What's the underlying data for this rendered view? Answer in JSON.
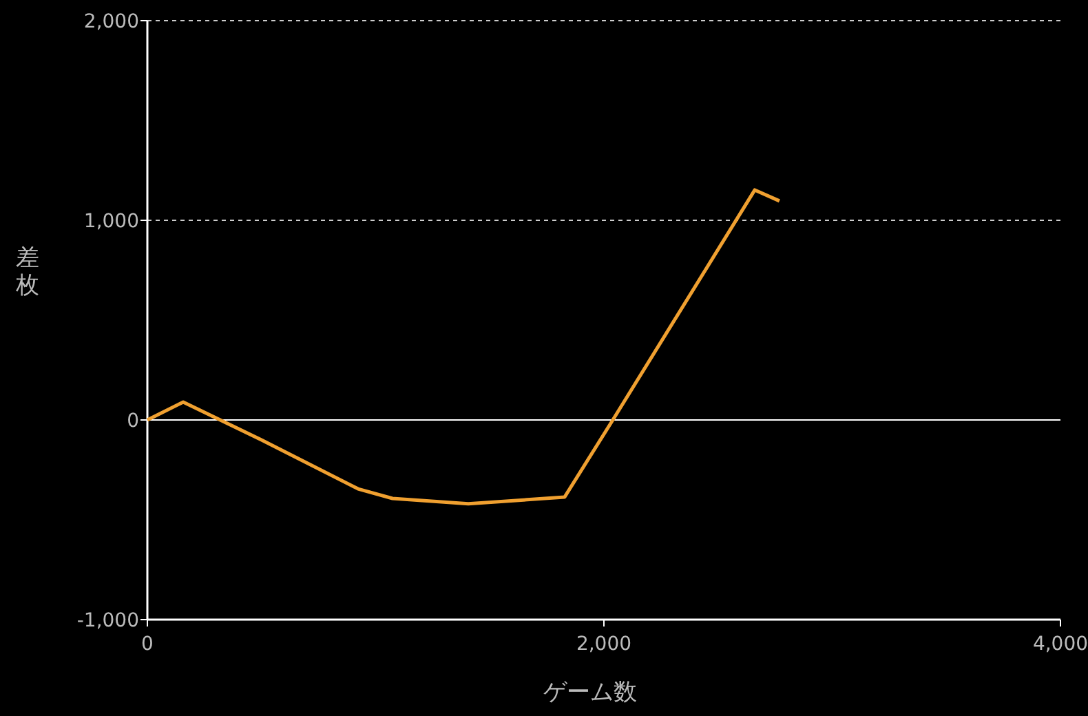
{
  "chart_data": {
    "type": "line",
    "xlabel": "ゲーム数",
    "ylabel": "差枚",
    "x": [
      0,
      157,
      500,
      923,
      1074,
      1406,
      1828,
      2039,
      2661,
      2769
    ],
    "series": [
      {
        "color": "#f0a030",
        "values": [
          0,
          90,
          -100,
          -345,
          -393,
          -420,
          -386,
          0,
          1152,
          1097
        ]
      }
    ],
    "xlim": [
      0,
      4000
    ],
    "xticks": [
      {
        "value": 0,
        "label": "0"
      },
      {
        "value": 2000,
        "label": "2,000"
      },
      {
        "value": 4000,
        "label": "4,000"
      }
    ],
    "ylim": [
      -1000,
      2000
    ],
    "yticks": [
      {
        "value": -1000,
        "label": "-1,000"
      },
      {
        "value": 0,
        "label": "0"
      },
      {
        "value": 1000,
        "label": "1,000"
      },
      {
        "value": 2000,
        "label": "2,000"
      }
    ],
    "grid": false,
    "marker": "none",
    "line_style": "solid",
    "ref_lines": [
      {
        "axis": "y",
        "value": 0,
        "color": "#ffffff",
        "line_style": "solid"
      },
      {
        "axis": "y",
        "value": 1000,
        "color": "#cccccc",
        "line_style": "dotted"
      },
      {
        "axis": "y",
        "value": 2000,
        "color": "#cccccc",
        "line_style": "dotted"
      }
    ]
  }
}
